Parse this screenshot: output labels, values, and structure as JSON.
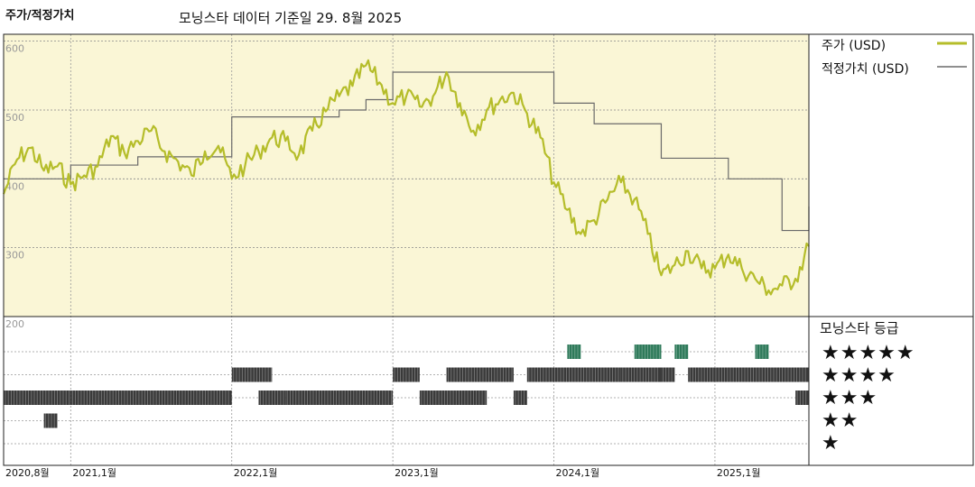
{
  "header": {
    "title": "주가/적정가치",
    "subtitle": "모닝스타 데이터 기준일 29. 8월 2025"
  },
  "legend": {
    "price": "주가 (USD)",
    "fair_value": "적정가치 (USD)"
  },
  "rating_panel": {
    "title": "모닝스타 등급",
    "levels": [
      "★★★★★",
      "★★★★",
      "★★★",
      "★★",
      "★"
    ]
  },
  "colors": {
    "price": "#b5bd2a",
    "fair_value": "#6a6a6a",
    "plot_bg": "#faf6d6",
    "rating5": "#2e7a5a",
    "rating_other": "#3a3a3a"
  },
  "chart_data": {
    "type": "line",
    "ylim": [
      200,
      610
    ],
    "y_ticks": [
      "600",
      "500",
      "400",
      "300",
      "200"
    ],
    "x_ticks": [
      "2020,8월",
      "2021,1월",
      "2022,1월",
      "2023,1월",
      "2024,1월",
      "2025,1월"
    ],
    "x_tick_dates": [
      "2020-08",
      "2021-01",
      "2022-01",
      "2023-01",
      "2024-01",
      "2025-01"
    ],
    "x_range": [
      "2020-08",
      "2025-08"
    ],
    "series": [
      {
        "name": "주가 (USD)",
        "points": [
          [
            "2020-08",
            378
          ],
          [
            "2020-09",
            428
          ],
          [
            "2020-10",
            445
          ],
          [
            "2020-11",
            412
          ],
          [
            "2020-12",
            418
          ],
          [
            "2021-01",
            392
          ],
          [
            "2021-02",
            405
          ],
          [
            "2021-03",
            418
          ],
          [
            "2021-04",
            462
          ],
          [
            "2021-05",
            438
          ],
          [
            "2021-06",
            455
          ],
          [
            "2021-07",
            470
          ],
          [
            "2021-08",
            440
          ],
          [
            "2021-09",
            425
          ],
          [
            "2021-10",
            405
          ],
          [
            "2021-11",
            440
          ],
          [
            "2021-12",
            448
          ],
          [
            "2022-01",
            400
          ],
          [
            "2022-02",
            420
          ],
          [
            "2022-03",
            440
          ],
          [
            "2022-04",
            460
          ],
          [
            "2022-05",
            455
          ],
          [
            "2022-06",
            435
          ],
          [
            "2022-07",
            470
          ],
          [
            "2022-08",
            498
          ],
          [
            "2022-09",
            520
          ],
          [
            "2022-10",
            535
          ],
          [
            "2022-11",
            565
          ],
          [
            "2022-12",
            540
          ],
          [
            "2023-01",
            510
          ],
          [
            "2023-02",
            520
          ],
          [
            "2023-03",
            505
          ],
          [
            "2023-04",
            520
          ],
          [
            "2023-05",
            555
          ],
          [
            "2023-06",
            510
          ],
          [
            "2023-07",
            470
          ],
          [
            "2023-08",
            500
          ],
          [
            "2023-09",
            515
          ],
          [
            "2023-10",
            525
          ],
          [
            "2023-11",
            495
          ],
          [
            "2023-12",
            460
          ],
          [
            "2024-01",
            395
          ],
          [
            "2024-02",
            355
          ],
          [
            "2024-03",
            320
          ],
          [
            "2024-04",
            340
          ],
          [
            "2024-05",
            370
          ],
          [
            "2024-06",
            395
          ],
          [
            "2024-07",
            370
          ],
          [
            "2024-08",
            320
          ],
          [
            "2024-09",
            260
          ],
          [
            "2024-10",
            275
          ],
          [
            "2024-11",
            295
          ],
          [
            "2024-12",
            270
          ],
          [
            "2025-01",
            270
          ],
          [
            "2025-02",
            290
          ],
          [
            "2025-03",
            270
          ],
          [
            "2025-04",
            255
          ],
          [
            "2025-05",
            238
          ],
          [
            "2025-06",
            245
          ],
          [
            "2025-07",
            255
          ],
          [
            "2025-08",
            302
          ]
        ]
      },
      {
        "name": "적정가치 (USD)",
        "step": true,
        "points": [
          [
            "2020-08",
            400
          ],
          [
            "2021-01",
            420
          ],
          [
            "2021-06",
            432
          ],
          [
            "2022-01",
            490
          ],
          [
            "2022-09",
            500
          ],
          [
            "2022-11",
            515
          ],
          [
            "2023-01",
            555
          ],
          [
            "2024-01",
            510
          ],
          [
            "2024-04",
            480
          ],
          [
            "2024-09",
            430
          ],
          [
            "2025-02",
            400
          ],
          [
            "2025-06",
            325
          ],
          [
            "2025-08",
            360
          ]
        ]
      }
    ],
    "ratings": [
      {
        "from": "2020-08",
        "to": "2021-01",
        "stars": 3
      },
      {
        "from": "2020-11",
        "to": "2020-12",
        "stars": 2
      },
      {
        "from": "2021-01",
        "to": "2022-01",
        "stars": 3
      },
      {
        "from": "2022-01",
        "to": "2022-04",
        "stars": 4
      },
      {
        "from": "2022-03",
        "to": "2022-05",
        "stars": 3
      },
      {
        "from": "2022-05",
        "to": "2023-01",
        "stars": 3
      },
      {
        "from": "2023-01",
        "to": "2023-03",
        "stars": 4
      },
      {
        "from": "2023-03",
        "to": "2023-08",
        "stars": 3
      },
      {
        "from": "2023-05",
        "to": "2023-10",
        "stars": 4
      },
      {
        "from": "2023-10",
        "to": "2023-11",
        "stars": 3
      },
      {
        "from": "2023-11",
        "to": "2024-06",
        "stars": 4
      },
      {
        "from": "2024-02",
        "to": "2024-03",
        "stars": 5
      },
      {
        "from": "2024-06",
        "to": "2024-09",
        "stars": 4
      },
      {
        "from": "2024-07",
        "to": "2024-09",
        "stars": 5
      },
      {
        "from": "2024-09",
        "to": "2024-10",
        "stars": 4
      },
      {
        "from": "2024-10",
        "to": "2024-11",
        "stars": 5
      },
      {
        "from": "2024-11",
        "to": "2025-08",
        "stars": 4
      },
      {
        "from": "2025-04",
        "to": "2025-05",
        "stars": 5
      },
      {
        "from": "2025-07",
        "to": "2025-08",
        "stars": 3
      }
    ]
  }
}
